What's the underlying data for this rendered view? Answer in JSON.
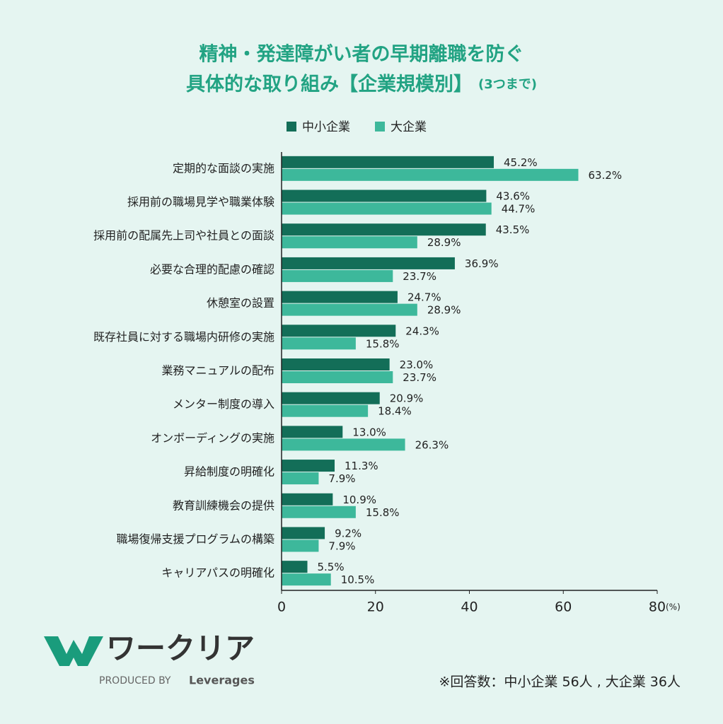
{
  "chart_data": {
    "type": "bar",
    "orientation": "horizontal",
    "title": [
      "精神・発達障がい者の早期離職を防ぐ",
      "具体的な取り組み【企業規模別】"
    ],
    "title_note": "(3つまで)",
    "categories": [
      "定期的な面談の実施",
      "採用前の職場見学や職業体験",
      "採用前の配属先上司や社員との面談",
      "必要な合理的配慮の確認",
      "休憩室の設置",
      "既存社員に対する職場内研修の実施",
      "業務マニュアルの配布",
      "メンター制度の導入",
      "オンボーディングの実施",
      "昇給制度の明確化",
      "教育訓練機会の提供",
      "職場復帰支援プログラムの構築",
      "キャリアパスの明確化"
    ],
    "series": [
      {
        "name": "中小企業",
        "color": "#136e58",
        "values": [
          45.2,
          43.6,
          43.5,
          36.9,
          24.7,
          24.3,
          23.0,
          20.9,
          13.0,
          11.3,
          10.9,
          9.2,
          5.5
        ],
        "value_labels": [
          "45.2%",
          "43.6%",
          "43.5%",
          "36.9%",
          "24.7%",
          "24.3%",
          "23.0%",
          "20.9%",
          "13.0%",
          "11.3%",
          "10.9%",
          "9.2%",
          "5.5%"
        ]
      },
      {
        "name": "大企業",
        "color": "#3db89b",
        "values": [
          63.2,
          44.7,
          28.9,
          23.7,
          28.9,
          15.8,
          23.7,
          18.4,
          26.3,
          7.9,
          15.8,
          7.9,
          10.5
        ],
        "value_labels": [
          "63.2%",
          "44.7%",
          "28.9%",
          "23.7%",
          "28.9%",
          "15.8%",
          "23.7%",
          "18.4%",
          "26.3%",
          "7.9%",
          "15.8%",
          "7.9%",
          "10.5%"
        ]
      }
    ],
    "xlim": [
      0,
      80
    ],
    "xticks": [
      0,
      20,
      40,
      60,
      80
    ],
    "x_unit": "(%)",
    "legend": "top",
    "footnote": "※回答数：中小企業 56人 , 大企業 36人"
  },
  "logo": {
    "name": "ワークリア",
    "produced_by": "PRODUCED BY",
    "brand": "Leverages"
  }
}
